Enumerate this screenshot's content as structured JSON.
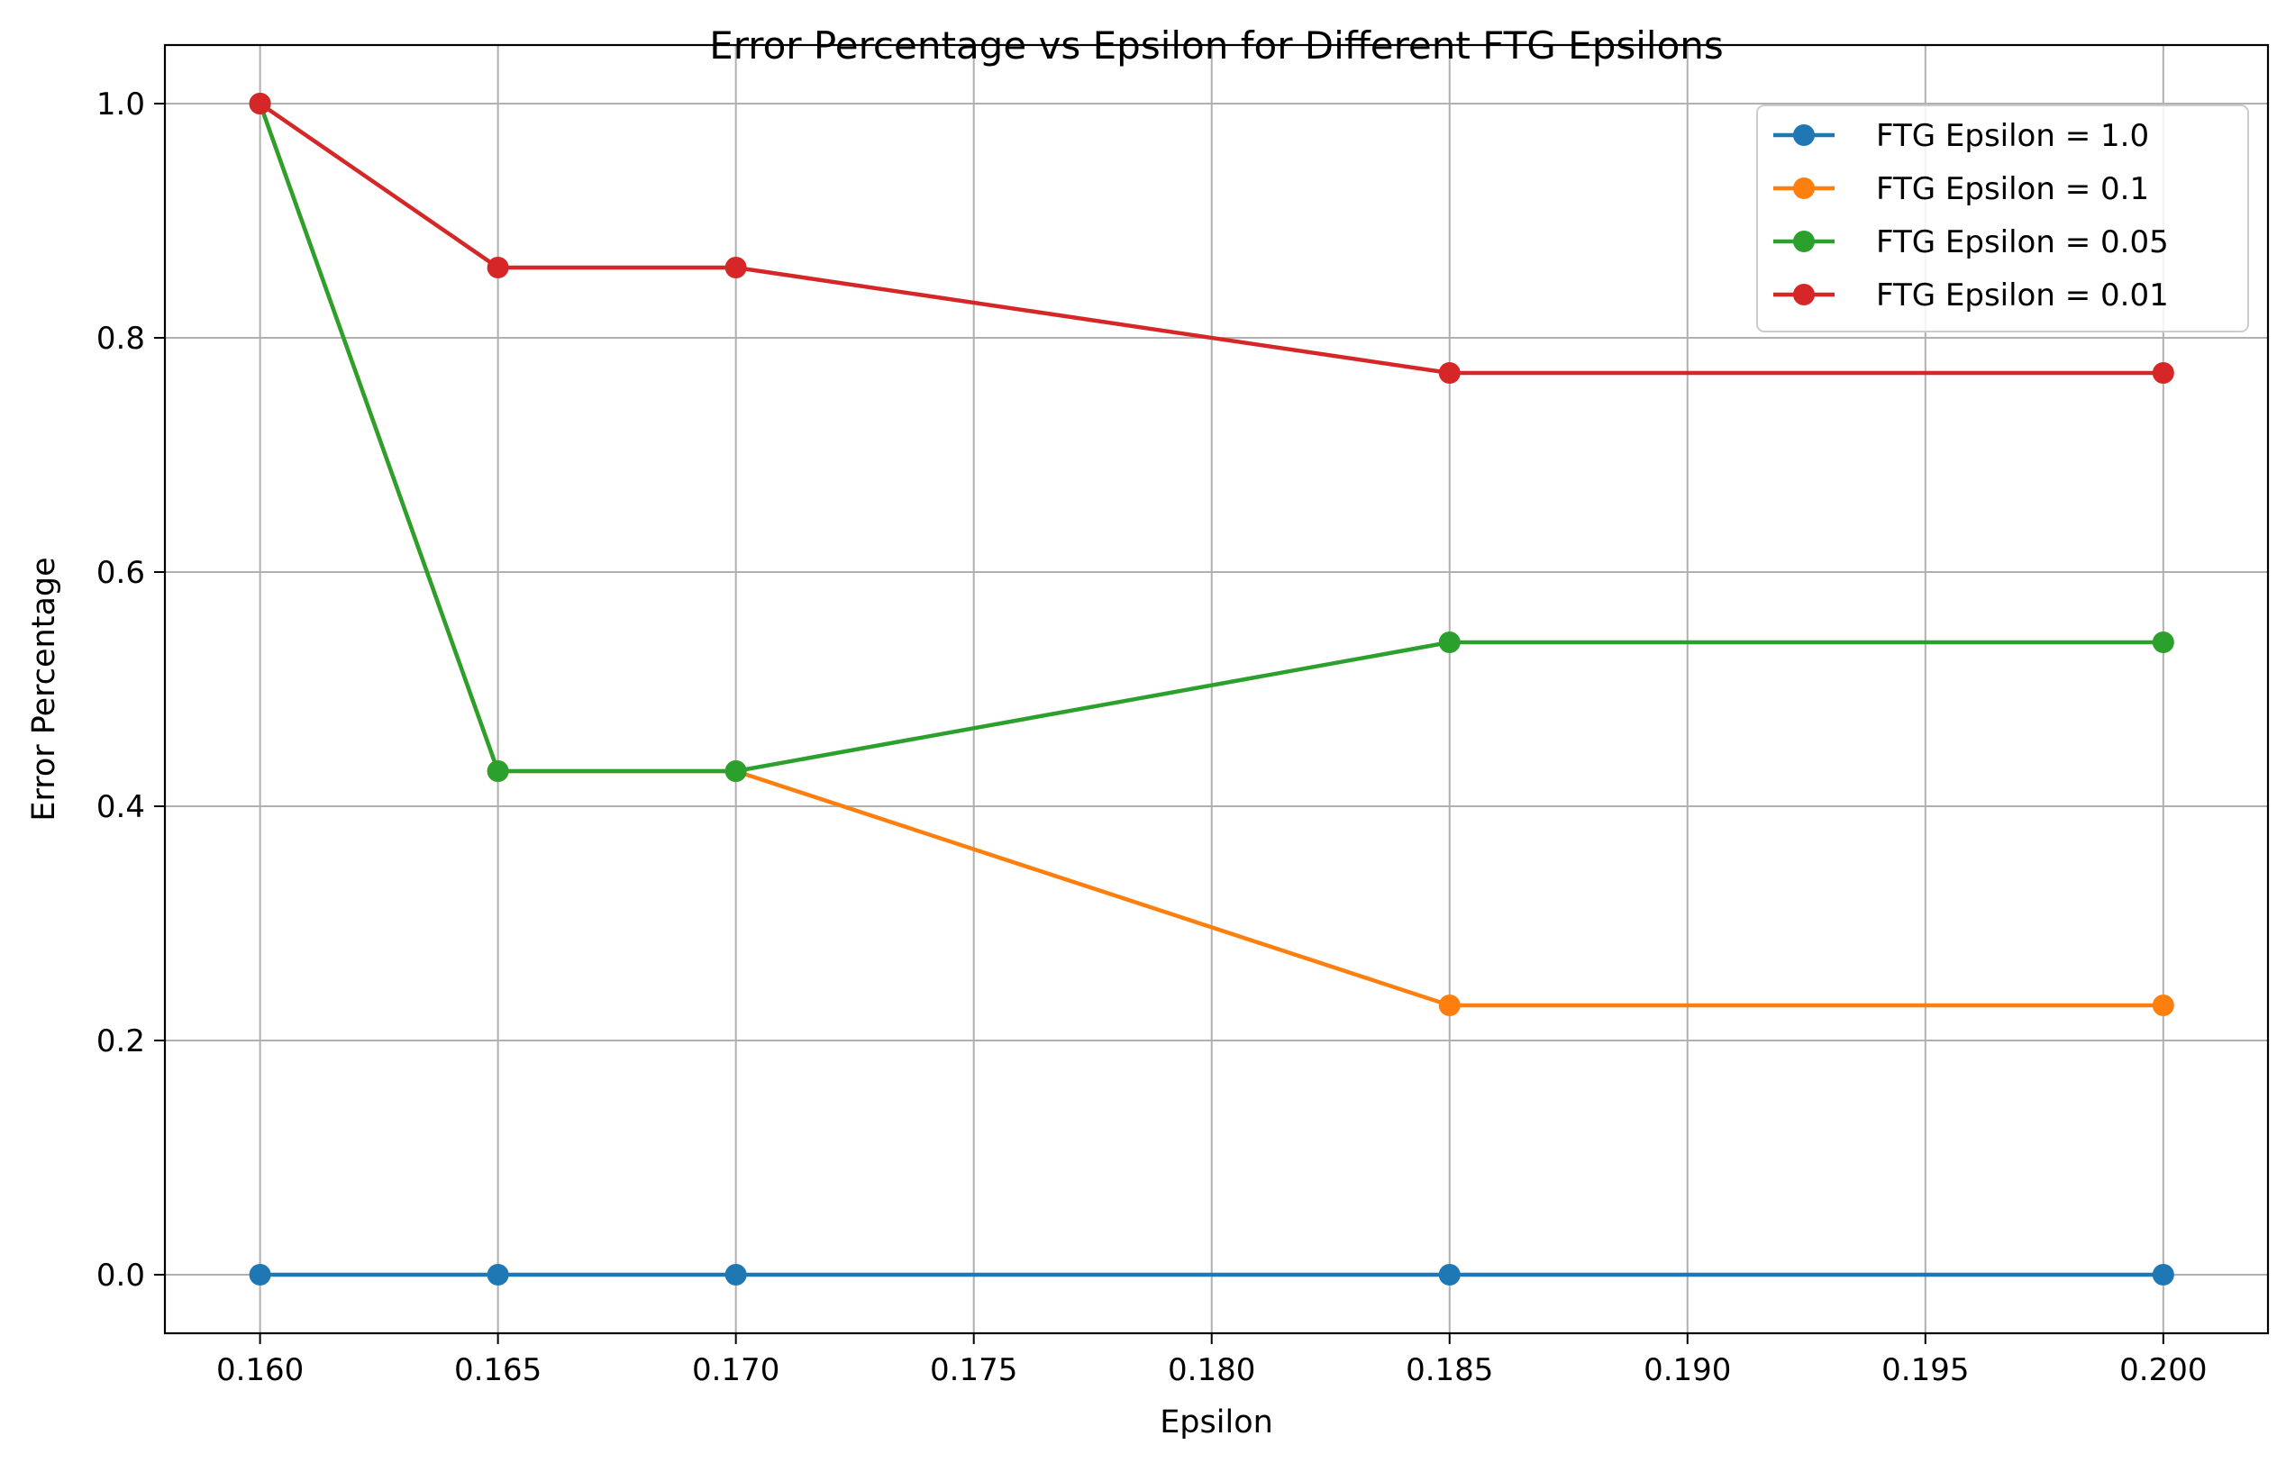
{
  "chart_data": {
    "type": "line",
    "title": "Error Percentage vs Epsilon for Different FTG Epsilons",
    "xlabel": "Epsilon",
    "ylabel": "Error Percentage",
    "x": [
      0.16,
      0.165,
      0.17,
      0.185,
      0.2
    ],
    "xlim": [
      0.158,
      0.2022
    ],
    "ylim": [
      -0.05,
      1.05
    ],
    "x_ticks": [
      0.16,
      0.165,
      0.17,
      0.175,
      0.18,
      0.185,
      0.19,
      0.195,
      0.2
    ],
    "x_tick_labels": [
      "0.160",
      "0.165",
      "0.170",
      "0.175",
      "0.180",
      "0.185",
      "0.190",
      "0.195",
      "0.200"
    ],
    "y_ticks": [
      0.0,
      0.2,
      0.4,
      0.6,
      0.8,
      1.0
    ],
    "y_tick_labels": [
      "0.0",
      "0.2",
      "0.4",
      "0.6",
      "0.8",
      "1.0"
    ],
    "grid": true,
    "legend_position": "top-right",
    "series": [
      {
        "name": "FTG Epsilon = 1.0",
        "color": "#1f77b4",
        "values": [
          0.0,
          0.0,
          0.0,
          0.0,
          0.0
        ]
      },
      {
        "name": "FTG Epsilon = 0.1",
        "color": "#ff7f0e",
        "values": [
          1.0,
          0.43,
          0.43,
          0.23,
          0.23
        ]
      },
      {
        "name": "FTG Epsilon = 0.05",
        "color": "#2ca02c",
        "values": [
          1.0,
          0.43,
          0.43,
          0.54,
          0.54
        ]
      },
      {
        "name": "FTG Epsilon = 0.01",
        "color": "#d62728",
        "values": [
          1.0,
          0.86,
          0.86,
          0.77,
          0.77
        ]
      }
    ]
  }
}
